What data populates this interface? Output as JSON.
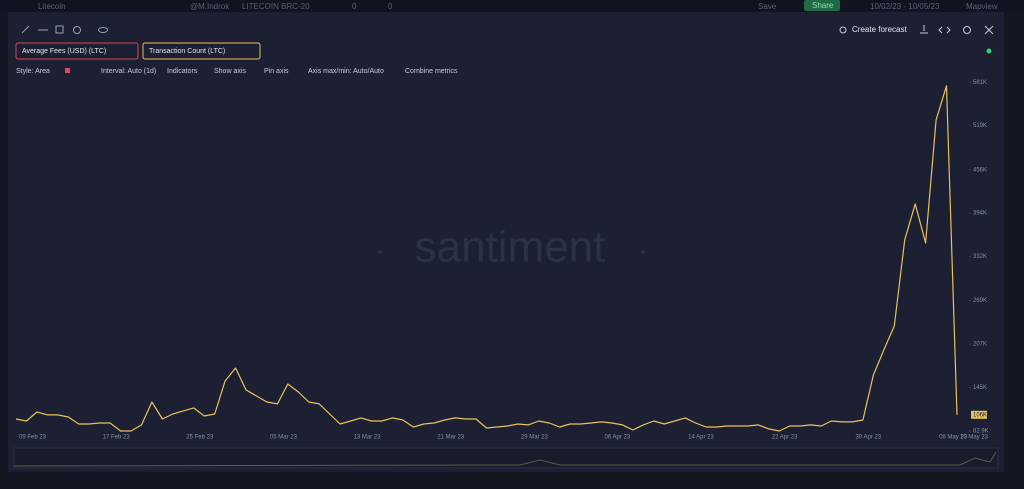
{
  "ui": {
    "topbar": {
      "name": "Litecoin",
      "author": "@M.Indrok",
      "layout": "LITECOIN BRC-20",
      "comments": "0",
      "likes": "0",
      "save": "Save",
      "share": "Share",
      "range": "10/02/23 - 10/05/23",
      "mapview": "Mapview"
    },
    "metrics": [
      "Average Fees (USD) (LTC)"
    ],
    "toolbar": {
      "style": "Style: Area",
      "interval": "Interval: Auto (1d)",
      "indicators": "Indicators",
      "show_axis": "Show axis",
      "pin_axis": "Pin axis",
      "axis_minmax": "Axis max/min: Auto/Auto",
      "combine": "Combine metrics"
    },
    "forecast": "Create forecast",
    "watermark": "santiment"
  },
  "chart_data": {
    "type": "line",
    "categories": [
      "09 Feb 23",
      null,
      null,
      null,
      null,
      null,
      null,
      null,
      "17 Feb 23",
      null,
      null,
      null,
      null,
      null,
      null,
      null,
      "25 Feb 23",
      null,
      null,
      null,
      null,
      null,
      null,
      null,
      "05 Mar 23",
      null,
      null,
      null,
      null,
      null,
      null,
      null,
      "13 Mar 23",
      null,
      null,
      null,
      null,
      null,
      null,
      null,
      "21 Mar 23",
      null,
      null,
      null,
      null,
      null,
      null,
      null,
      "29 Mar 23",
      null,
      null,
      null,
      null,
      null,
      null,
      null,
      "06 Apr 23",
      null,
      null,
      null,
      null,
      null,
      null,
      null,
      "14 Apr 23",
      null,
      null,
      null,
      null,
      null,
      null,
      null,
      "22 Apr 23",
      null,
      null,
      null,
      null,
      null,
      null,
      null,
      "30 Apr 23",
      null,
      null,
      null,
      null,
      null,
      null,
      null,
      "08 May 23",
      null,
      "10 May 23"
    ],
    "series": [
      {
        "name": "Transaction Count (LTC)",
        "color": "#e8c25c",
        "values": [
          100000,
          97200,
          110000,
          105800,
          105800,
          102900,
          92900,
          92900,
          94300,
          94300,
          82900,
          82900,
          91500,
          124300,
          100000,
          107200,
          111500,
          115800,
          104300,
          107200,
          154300,
          172900,
          141500,
          132900,
          124300,
          121500,
          150000,
          138600,
          124300,
          121500,
          107200,
          92900,
          97200,
          101500,
          97200,
          97200,
          101500,
          98600,
          88600,
          92900,
          94300,
          98600,
          101500,
          100000,
          100000,
          87200,
          88600,
          90000,
          92900,
          91500,
          97200,
          94300,
          88600,
          92900,
          92900,
          94300,
          95800,
          94300,
          91500,
          84300,
          91500,
          97200,
          92900,
          97200,
          101500,
          94300,
          88600,
          88600,
          90000,
          90000,
          90000,
          91500,
          85800,
          82900,
          90000,
          90000,
          91500,
          90000,
          97200,
          95800,
          95800,
          98600,
          162900,
          198600,
          232900,
          355800,
          407200,
          351500,
          527200,
          575800,
          106000
        ]
      }
    ],
    "last_value_label": "106K",
    "ylim": [
      70000,
      587000
    ],
    "yticks": [
      {
        "value": 82900,
        "label": "82.9K"
      },
      {
        "value": 145000,
        "label": "145K"
      },
      {
        "value": 207000,
        "label": "207K"
      },
      {
        "value": 269000,
        "label": "269K"
      },
      {
        "value": 332000,
        "label": "332K"
      },
      {
        "value": 394000,
        "label": "394K"
      },
      {
        "value": 456000,
        "label": "456K"
      },
      {
        "value": 519000,
        "label": "519K"
      },
      {
        "value": 581000,
        "label": "581K"
      }
    ],
    "grid": false
  }
}
